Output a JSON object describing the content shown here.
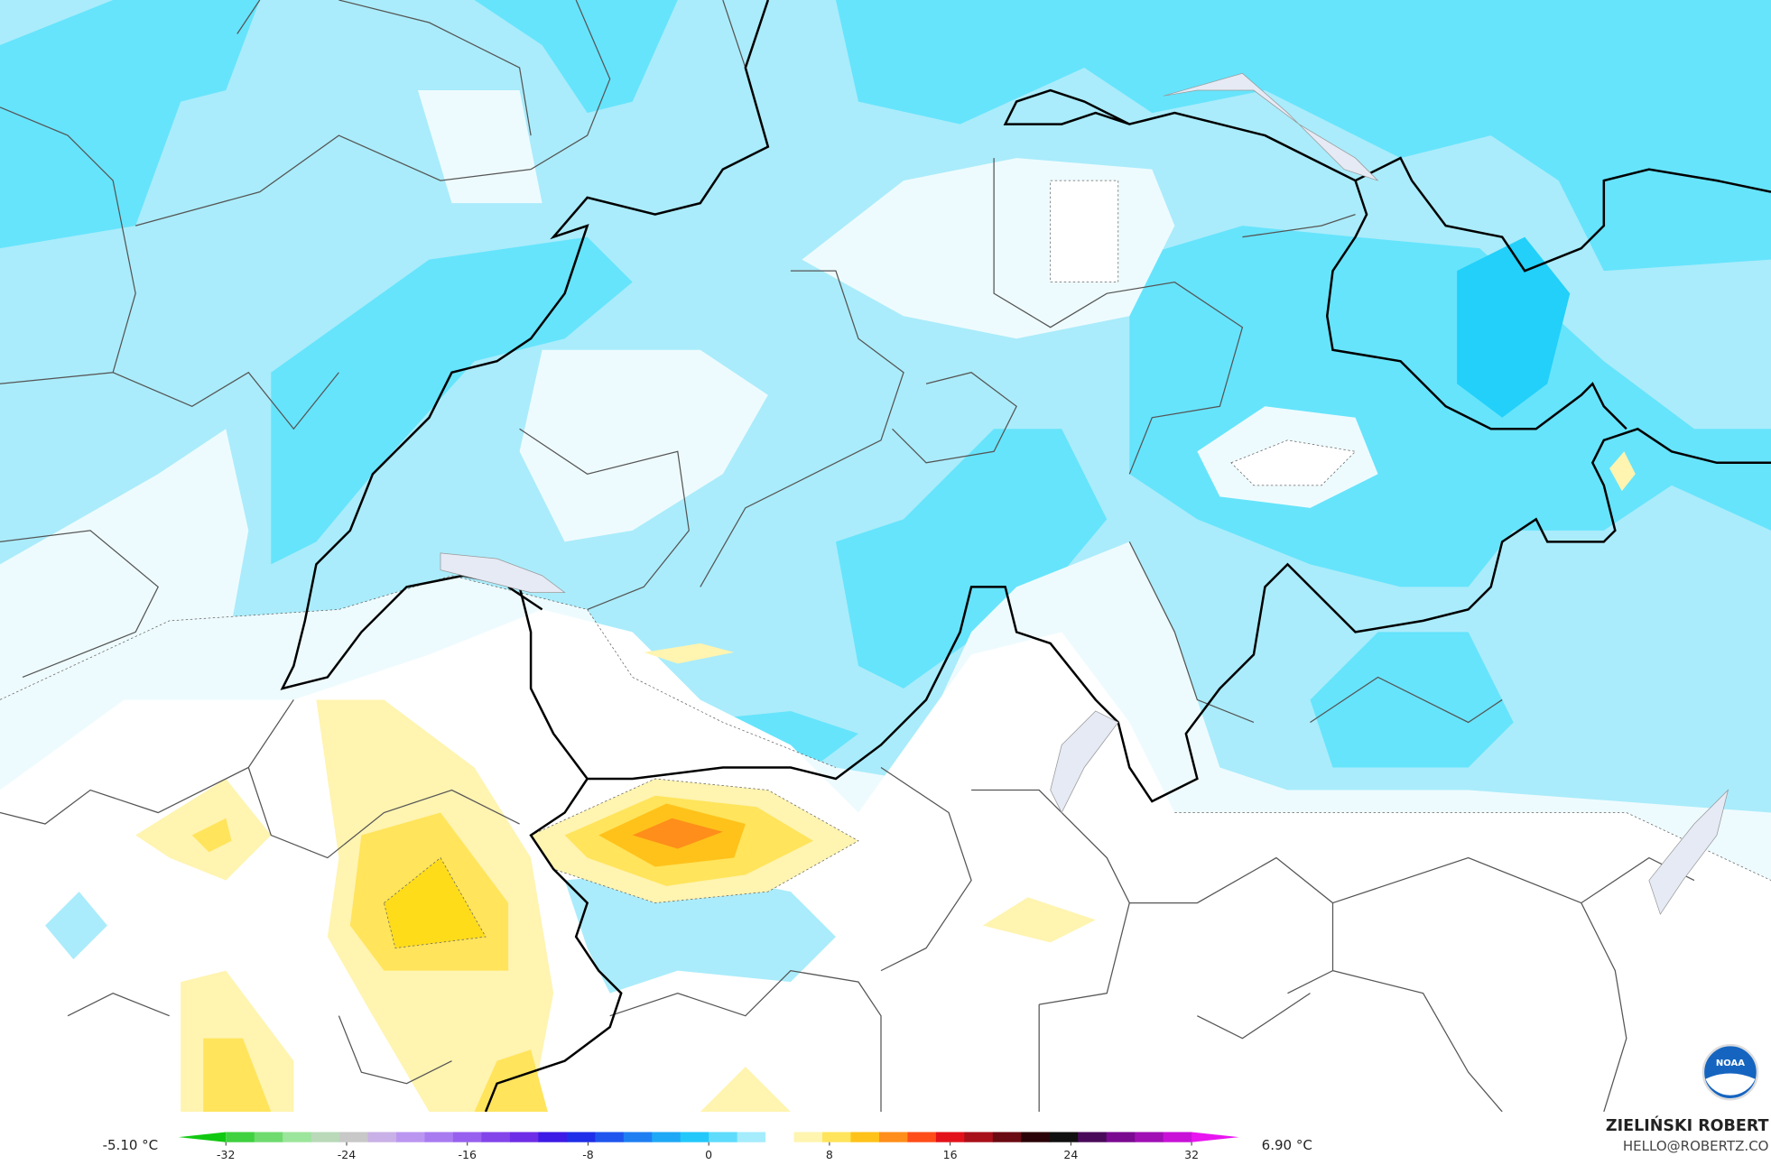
{
  "map": {
    "legend": {
      "min_label": "-5.10 °C",
      "max_label": "6.90 °C",
      "lim": [
        -32,
        32
      ],
      "ticks": [
        -32,
        -24,
        -16,
        -8,
        0,
        8,
        16,
        24,
        32
      ],
      "colors": [
        "#11c811",
        "#3fd13f",
        "#6fdb6f",
        "#9ce59c",
        "#b9d9b9",
        "#c8c8c8",
        "#c9b0e6",
        "#bb96f0",
        "#a97bf0",
        "#9860ee",
        "#8345ea",
        "#6e2de6",
        "#3d1ae6",
        "#1f2ee8",
        "#1f55ee",
        "#1f7ff2",
        "#1fa8f5",
        "#22c8fa",
        "#5fdcfc",
        "#a5ecfd",
        "#ffffff",
        "#fff4b0",
        "#ffe45c",
        "#ffc21a",
        "#ff8e1a",
        "#ff4d1a",
        "#e3121a",
        "#a8101a",
        "#6a0a12",
        "#2a0308",
        "#101010",
        "#4a0a5a",
        "#7a0a90",
        "#a010b5",
        "#c812d8",
        "#e815f0"
      ]
    },
    "credit": {
      "name": "ZIELIŃSKI ROBERT",
      "email": "HELLO@ROBERTZ.CO"
    },
    "logo": "NOAA"
  }
}
